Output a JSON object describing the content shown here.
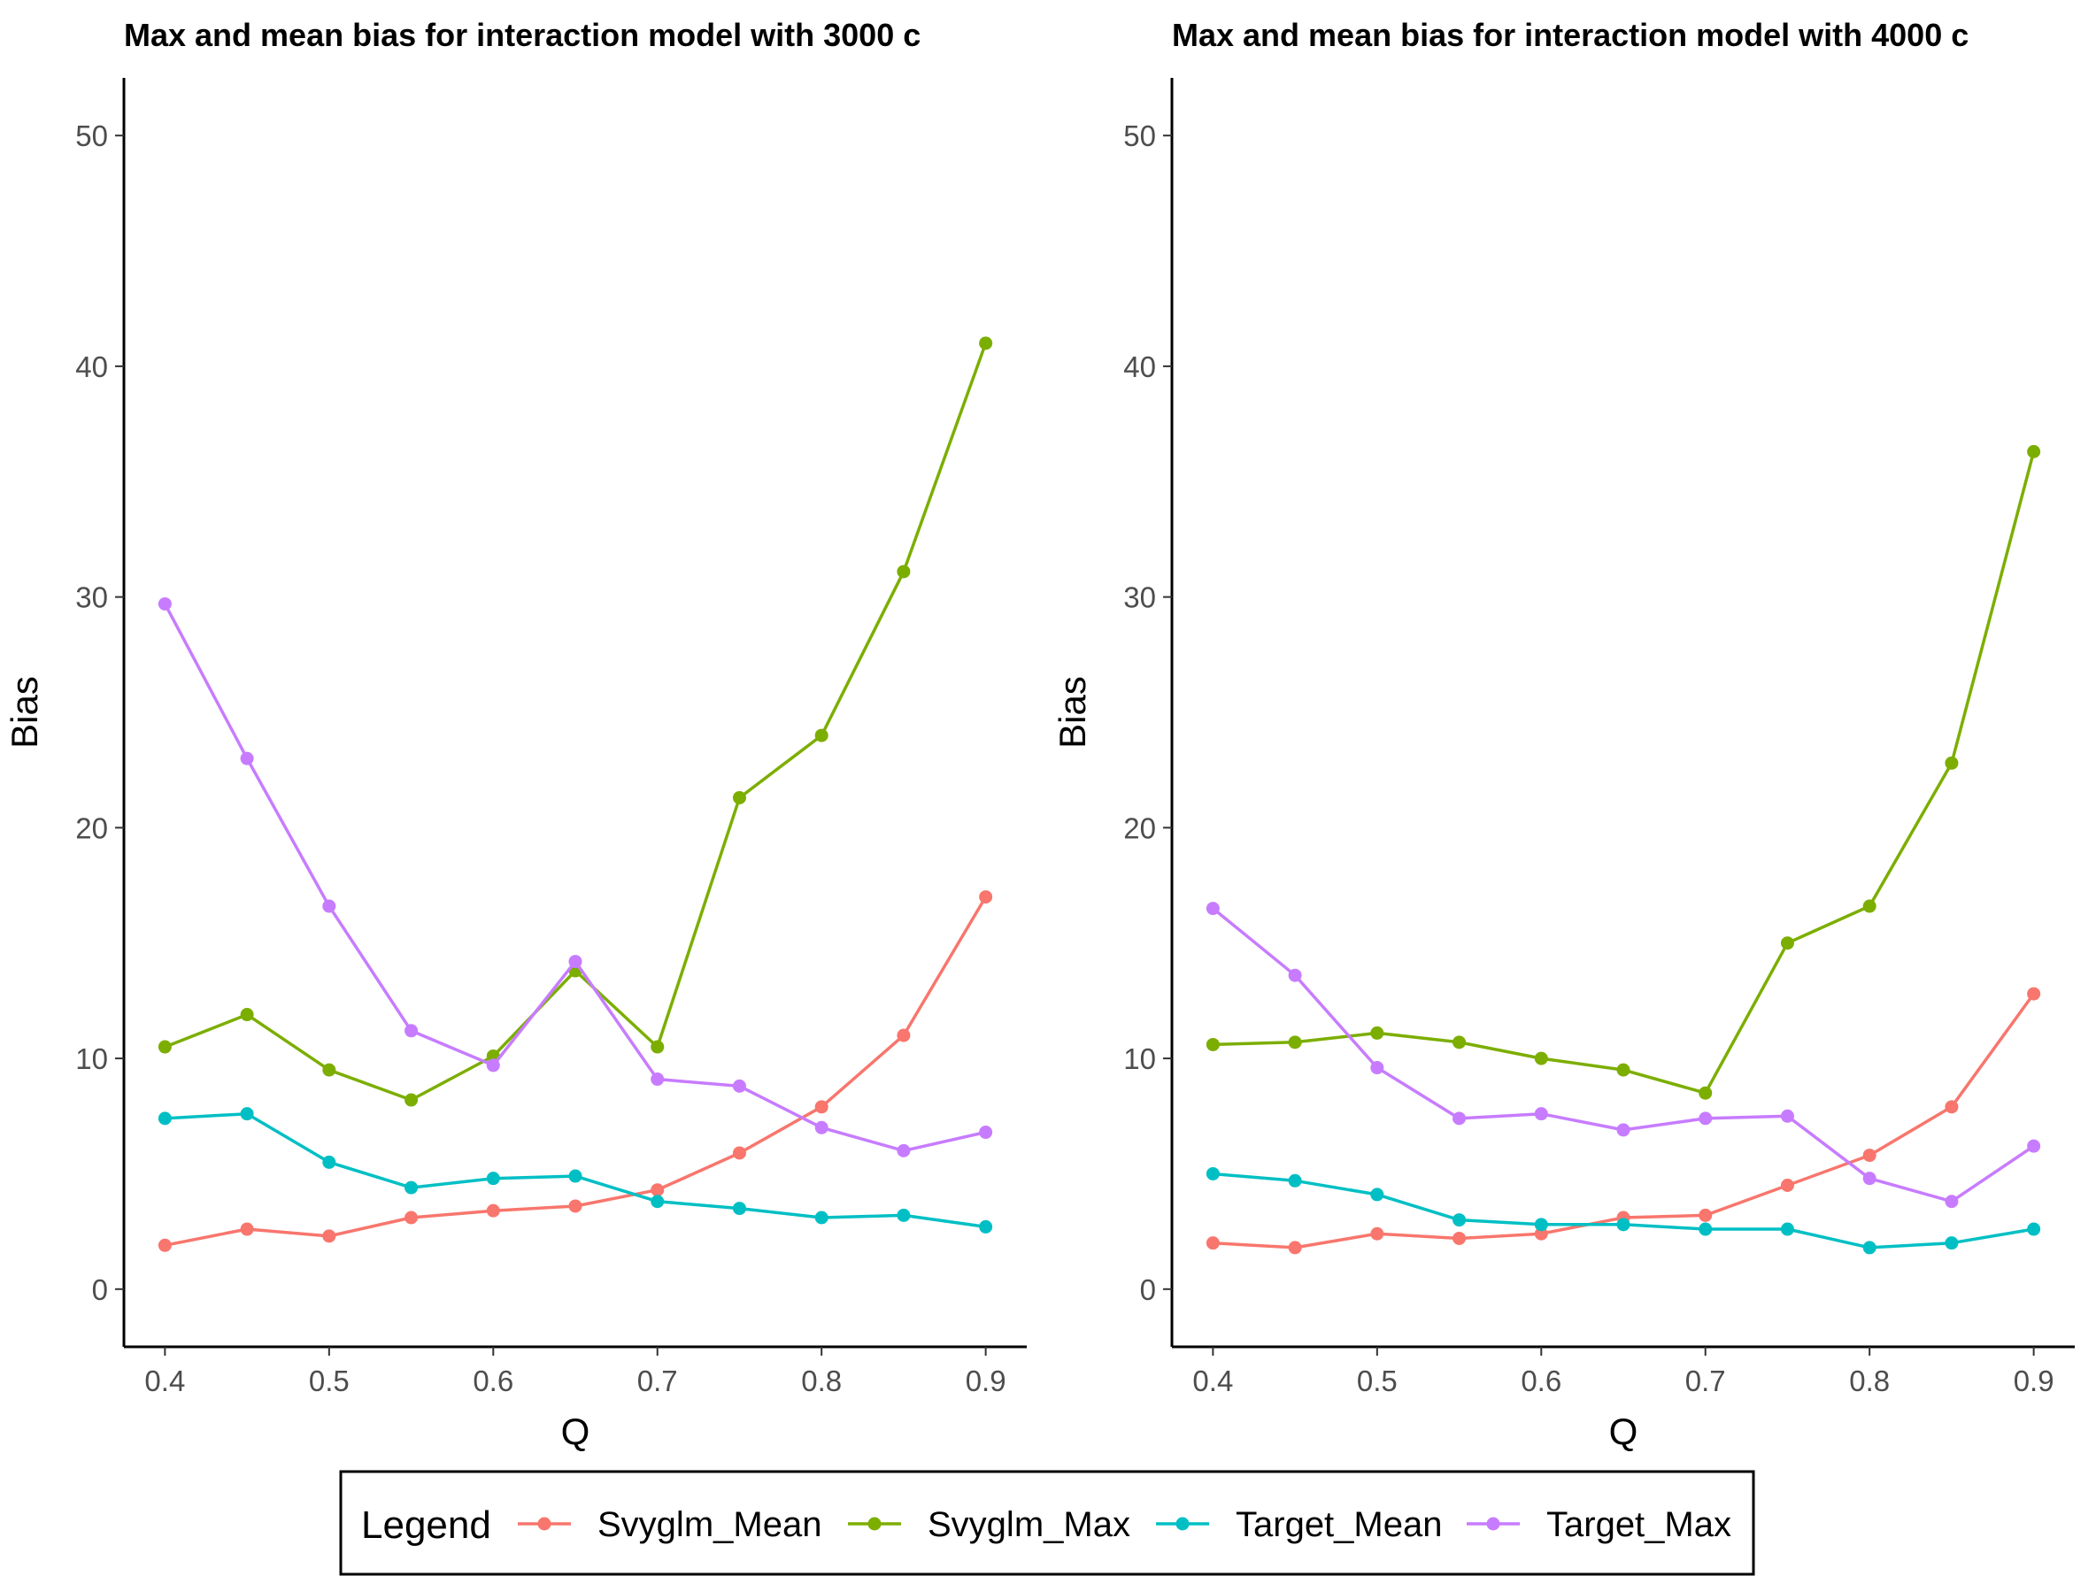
{
  "chart_data": [
    {
      "type": "line",
      "title": "Max and mean bias for interaction model with 3000 c",
      "xlabel": "Q",
      "ylabel": "Bias",
      "xlim": [
        0.375,
        0.925
      ],
      "ylim": [
        -2.5,
        52.5
      ],
      "x_ticks": [
        "0.4",
        "0.5",
        "0.6",
        "0.7",
        "0.8",
        "0.9"
      ],
      "y_ticks": [
        "0",
        "10",
        "20",
        "30",
        "40",
        "50"
      ],
      "x": [
        0.4,
        0.45,
        0.5,
        0.55,
        0.6,
        0.65,
        0.7,
        0.75,
        0.8,
        0.85,
        0.9
      ],
      "series": [
        {
          "name": "Svyglm_Mean",
          "color": "#F8766D",
          "values": [
            1.9,
            2.6,
            2.3,
            3.1,
            3.4,
            3.6,
            4.3,
            5.9,
            7.9,
            11.0,
            17.0
          ]
        },
        {
          "name": "Svyglm_Max",
          "color": "#7CAE00",
          "values": [
            10.5,
            11.9,
            9.5,
            8.2,
            10.1,
            13.8,
            10.5,
            21.3,
            24.0,
            31.1,
            41.0
          ]
        },
        {
          "name": "Target_Mean",
          "color": "#00BFC4",
          "values": [
            7.4,
            7.6,
            5.5,
            4.4,
            4.8,
            4.9,
            3.8,
            3.5,
            3.1,
            3.2,
            2.7
          ]
        },
        {
          "name": "Target_Max",
          "color": "#C77CFF",
          "values": [
            29.7,
            23.0,
            16.6,
            11.2,
            9.7,
            14.2,
            9.1,
            8.8,
            7.0,
            6.0,
            6.8
          ]
        }
      ]
    },
    {
      "type": "line",
      "title": "Max and mean bias for interaction model with 4000 c",
      "xlabel": "Q",
      "ylabel": "Bias",
      "xlim": [
        0.375,
        0.925
      ],
      "ylim": [
        -2.5,
        52.5
      ],
      "x_ticks": [
        "0.4",
        "0.5",
        "0.6",
        "0.7",
        "0.8",
        "0.9"
      ],
      "y_ticks": [
        "0",
        "10",
        "20",
        "30",
        "40",
        "50"
      ],
      "x": [
        0.4,
        0.45,
        0.5,
        0.55,
        0.6,
        0.65,
        0.7,
        0.75,
        0.8,
        0.85,
        0.9
      ],
      "series": [
        {
          "name": "Svyglm_Mean",
          "color": "#F8766D",
          "values": [
            2.0,
            1.8,
            2.4,
            2.2,
            2.4,
            3.1,
            3.2,
            4.5,
            5.8,
            7.9,
            12.8
          ]
        },
        {
          "name": "Svyglm_Max",
          "color": "#7CAE00",
          "values": [
            10.6,
            10.7,
            11.1,
            10.7,
            10.0,
            9.5,
            8.5,
            15.0,
            16.6,
            22.8,
            36.3
          ]
        },
        {
          "name": "Target_Mean",
          "color": "#00BFC4",
          "values": [
            5.0,
            4.7,
            4.1,
            3.0,
            2.8,
            2.8,
            2.6,
            2.6,
            1.8,
            2.0,
            2.6
          ]
        },
        {
          "name": "Target_Max",
          "color": "#C77CFF",
          "values": [
            16.5,
            13.6,
            9.6,
            7.4,
            7.6,
            6.9,
            7.4,
            7.5,
            4.8,
            3.8,
            6.2
          ]
        }
      ]
    }
  ],
  "legend": {
    "title": "Legend",
    "position": "bottom",
    "entries": [
      "Svyglm_Mean",
      "Svyglm_Max",
      "Target_Mean",
      "Target_Max"
    ]
  }
}
